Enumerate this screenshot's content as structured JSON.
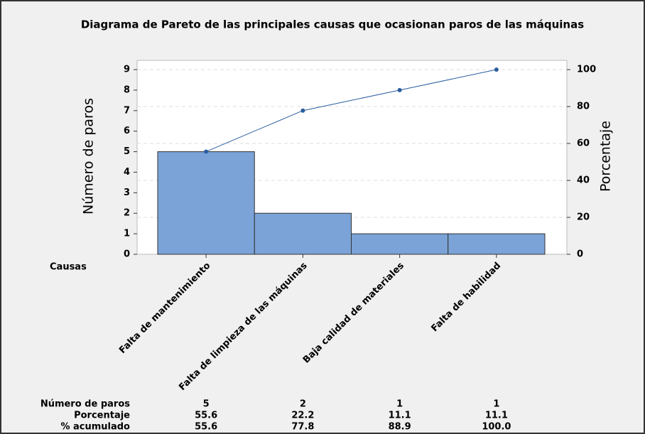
{
  "chart_data": {
    "type": "pareto",
    "title": "Diagrama de Pareto de las principales causas que ocasionan paros de las máquinas",
    "ylabel": "Número de paros",
    "y2label": "Porcentaje",
    "xlabel": "Causas",
    "categories": [
      "Falta de mantenimiento",
      "Falta de limpieza de las máquinas",
      "Baja calidad de materiales",
      "Falta de habilidad"
    ],
    "series": [
      {
        "name": "Número de paros",
        "color": "#7ba3d8",
        "values": [
          5,
          2,
          1,
          1
        ]
      },
      {
        "name": "Porcentaje",
        "values": [
          55.6,
          22.2,
          11.1,
          11.1
        ]
      },
      {
        "name": "% acumulado",
        "color": "#2a5d9f",
        "axis": "y2",
        "values": [
          55.6,
          77.8,
          88.9,
          100
        ],
        "value_labels": [
          "55.6",
          "77.8",
          "88.9",
          "100.0"
        ]
      }
    ],
    "ylim": [
      0,
      9.45
    ],
    "yticks": [
      0,
      1,
      2,
      3,
      4,
      5,
      6,
      7,
      8,
      9
    ],
    "y2lim": [
      0,
      105
    ],
    "y2ticks": [
      0,
      20,
      40,
      60,
      80,
      100
    ],
    "grid": true
  }
}
